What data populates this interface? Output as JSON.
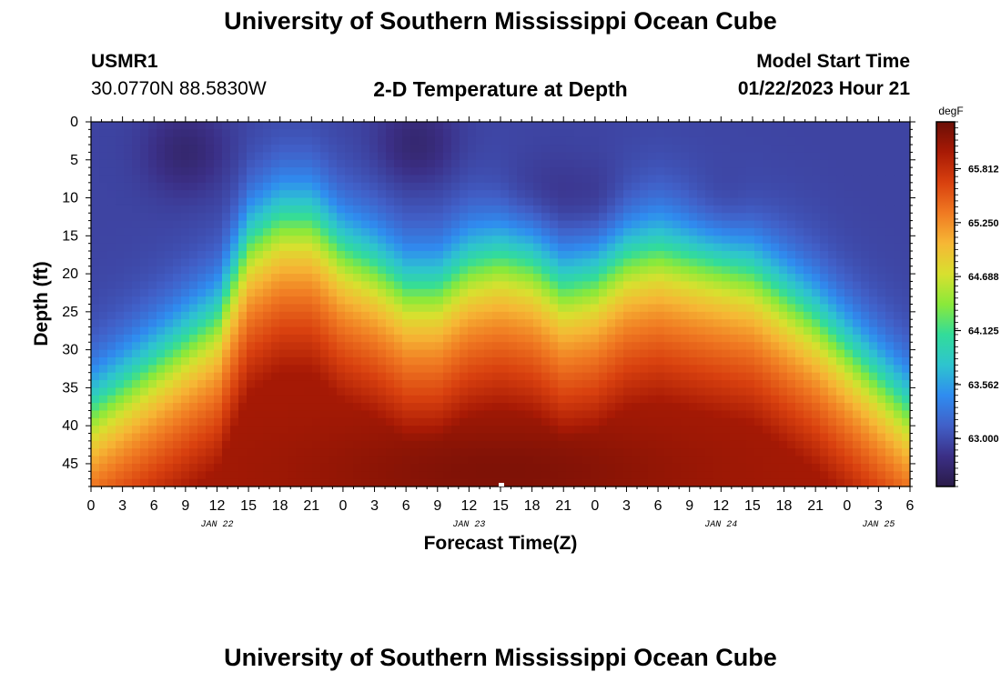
{
  "page": {
    "title": "University of Southern Mississippi Ocean Cube",
    "title_repeat": "University of Southern Mississippi Ocean Cube",
    "station": "USMR1",
    "coords": "30.0770N  88.5830W",
    "plot_title": "2-D Temperature at Depth",
    "model_start_label": "Model Start Time",
    "model_start_value": "01/22/2023 Hour 21"
  },
  "chart_data": {
    "type": "heatmap",
    "title": "2-D Temperature at Depth",
    "xlabel": "Forecast Time(Z)",
    "ylabel": "Depth (ft)",
    "x_tick_labels": [
      "0",
      "3",
      "6",
      "9",
      "12",
      "15",
      "18",
      "21",
      "0",
      "3",
      "6",
      "9",
      "12",
      "15",
      "18",
      "21",
      "0",
      "3",
      "6",
      "9",
      "12",
      "15",
      "18",
      "21",
      "0",
      "3",
      "6"
    ],
    "x_hours": [
      0,
      3,
      6,
      9,
      12,
      15,
      18,
      21,
      24,
      27,
      30,
      33,
      36,
      39,
      42,
      45,
      48,
      51,
      54,
      57,
      60,
      63,
      66,
      69,
      72,
      75,
      78
    ],
    "x_range": [
      0,
      78
    ],
    "date_labels": [
      {
        "text": "JAN 22",
        "hour": 12
      },
      {
        "text": "JAN 23",
        "hour": 36
      },
      {
        "text": "JAN 24",
        "hour": 60
      },
      {
        "text": "JAN 25",
        "hour": 75
      }
    ],
    "y_ticks": [
      0,
      5,
      10,
      15,
      20,
      25,
      30,
      35,
      40,
      45
    ],
    "y_range": [
      0,
      48
    ],
    "colorbar": {
      "unit": "degF",
      "ticks": [
        "65.812",
        "65.250",
        "64.688",
        "64.125",
        "63.562",
        "63.000"
      ],
      "tick_values": [
        65.812,
        65.25,
        64.688,
        64.125,
        63.562,
        63.0
      ],
      "range": [
        62.5,
        66.3
      ]
    },
    "thermocline_depth_ft": [
      {
        "hour": 0,
        "depth": 36
      },
      {
        "hour": 6,
        "depth": 30
      },
      {
        "hour": 12,
        "depth": 24
      },
      {
        "hour": 15,
        "depth": 14
      },
      {
        "hour": 18,
        "depth": 11
      },
      {
        "hour": 21,
        "depth": 11
      },
      {
        "hour": 24,
        "depth": 15
      },
      {
        "hour": 27,
        "depth": 17
      },
      {
        "hour": 30,
        "depth": 20
      },
      {
        "hour": 33,
        "depth": 20
      },
      {
        "hour": 36,
        "depth": 17
      },
      {
        "hour": 39,
        "depth": 16
      },
      {
        "hour": 42,
        "depth": 17
      },
      {
        "hour": 45,
        "depth": 20
      },
      {
        "hour": 48,
        "depth": 19
      },
      {
        "hour": 51,
        "depth": 16
      },
      {
        "hour": 54,
        "depth": 15
      },
      {
        "hour": 57,
        "depth": 16
      },
      {
        "hour": 60,
        "depth": 17
      },
      {
        "hour": 63,
        "depth": 18
      },
      {
        "hour": 66,
        "depth": 21
      },
      {
        "hour": 69,
        "depth": 24
      },
      {
        "hour": 72,
        "depth": 28
      },
      {
        "hour": 75,
        "depth": 32
      },
      {
        "hour": 78,
        "depth": 36
      }
    ],
    "cold_cores": [
      {
        "hour": 9,
        "depth": 4,
        "value": 62.7
      },
      {
        "hour": 31,
        "depth": 3,
        "value": 62.7
      },
      {
        "hour": 42,
        "depth": 10,
        "value": 62.8
      },
      {
        "hour": 48,
        "depth": 11,
        "value": 62.8
      },
      {
        "hour": 60,
        "depth": 12,
        "value": 62.8
      }
    ],
    "warm_core": {
      "hour": 39,
      "depth": 46,
      "value": 66.2
    },
    "palette": [
      "#2a1b48",
      "#3b2f86",
      "#4160c8",
      "#2f8cf0",
      "#2ec4cf",
      "#32dc9a",
      "#8ae93a",
      "#d8e02f",
      "#f6b735",
      "#f07a22",
      "#d9410f",
      "#a81a05",
      "#6b0e06"
    ],
    "surface_value": 62.95,
    "bottom_value": 66.0
  }
}
